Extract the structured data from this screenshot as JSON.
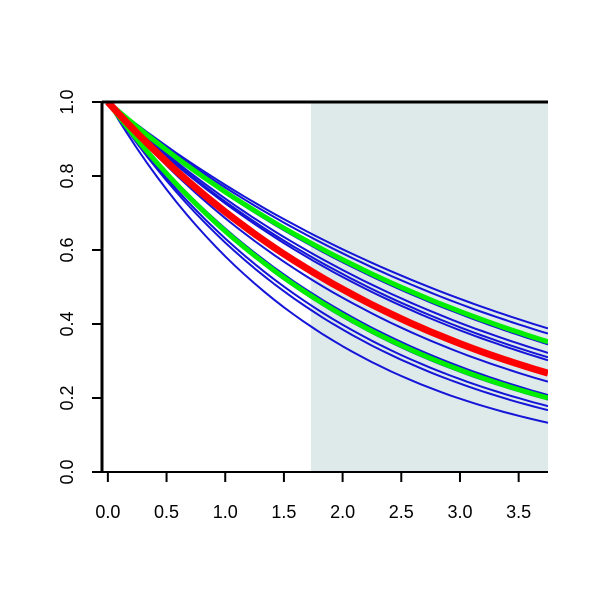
{
  "chart_data": {
    "type": "line",
    "title": "",
    "xlabel": "",
    "ylabel": "",
    "xlim": [
      -0.05,
      3.75
    ],
    "ylim": [
      0.0,
      1.0
    ],
    "x_ticks": [
      "0.0",
      "0.5",
      "1.0",
      "1.5",
      "2.0",
      "2.5",
      "3.0",
      "3.5"
    ],
    "y_ticks": [
      "0.0",
      "0.2",
      "0.4",
      "0.6",
      "0.8",
      "1.0"
    ],
    "shaded_region": {
      "x_start": 1.73,
      "x_end": 3.75,
      "color": "#deeaea"
    },
    "series": [
      {
        "color": "#1515d8",
        "kind": "band",
        "x": [
          0,
          1,
          2,
          3,
          3.75
        ],
        "values": [
          1.0,
          0.776,
          0.602,
          0.468,
          0.388
        ]
      },
      {
        "color": "#1515d8",
        "kind": "band",
        "x": [
          0,
          1,
          2,
          3,
          3.75
        ],
        "values": [
          1.0,
          0.769,
          0.591,
          0.454,
          0.374
        ]
      },
      {
        "color": "#1515d8",
        "kind": "band",
        "x": [
          0,
          1,
          2,
          3,
          3.75
        ],
        "values": [
          1.0,
          0.753,
          0.567,
          0.427,
          0.345
        ]
      },
      {
        "color": "#1515d8",
        "kind": "band",
        "x": [
          0,
          1,
          2,
          3,
          3.75
        ],
        "values": [
          1.0,
          0.739,
          0.546,
          0.403,
          0.322
        ]
      },
      {
        "color": "#1515d8",
        "kind": "band",
        "x": [
          0,
          1,
          2,
          3,
          3.75
        ],
        "values": [
          1.0,
          0.731,
          0.535,
          0.391,
          0.31
        ]
      },
      {
        "color": "#1515d8",
        "kind": "band",
        "x": [
          0,
          1,
          2,
          3,
          3.75
        ],
        "values": [
          1.0,
          0.726,
          0.527,
          0.383,
          0.302
        ]
      },
      {
        "color": "#1515d8",
        "kind": "band",
        "x": [
          0,
          1,
          2,
          3,
          3.75
        ],
        "values": [
          1.0,
          0.686,
          0.471,
          0.323,
          0.244
        ]
      },
      {
        "color": "#1515d8",
        "kind": "band",
        "x": [
          0,
          1,
          2,
          3,
          3.75
        ],
        "values": [
          1.0,
          0.658,
          0.433,
          0.285,
          0.208
        ]
      },
      {
        "color": "#1515d8",
        "kind": "band",
        "x": [
          0,
          1,
          2,
          3,
          3.75
        ],
        "values": [
          1.0,
          0.647,
          0.419,
          0.271,
          0.196
        ]
      },
      {
        "color": "#1515d8",
        "kind": "band",
        "x": [
          0,
          1,
          2,
          3,
          3.75
        ],
        "values": [
          1.0,
          0.631,
          0.398,
          0.251,
          0.178
        ]
      },
      {
        "color": "#1515d8",
        "kind": "band",
        "x": [
          0,
          1,
          2,
          3,
          3.75
        ],
        "values": [
          1.0,
          0.62,
          0.385,
          0.239,
          0.167
        ]
      },
      {
        "color": "#1515d8",
        "kind": "band",
        "x": [
          0,
          1,
          2,
          3,
          3.75
        ],
        "values": [
          1.0,
          0.583,
          0.34,
          0.198,
          0.133
        ]
      },
      {
        "color": "#00ee00",
        "kind": "bound",
        "x": [
          0,
          1,
          2,
          3,
          3.75
        ],
        "values": [
          1.0,
          0.757,
          0.574,
          0.434,
          0.352
        ]
      },
      {
        "color": "#00ee00",
        "kind": "bound",
        "x": [
          0,
          1,
          2,
          3,
          3.75
        ],
        "values": [
          1.0,
          0.651,
          0.424,
          0.276,
          0.2
        ]
      },
      {
        "color": "#ff0000",
        "kind": "estimate",
        "x": [
          0,
          1,
          2,
          3,
          3.75
        ],
        "values": [
          1.0,
          0.703,
          0.494,
          0.347,
          0.267
        ]
      }
    ]
  }
}
